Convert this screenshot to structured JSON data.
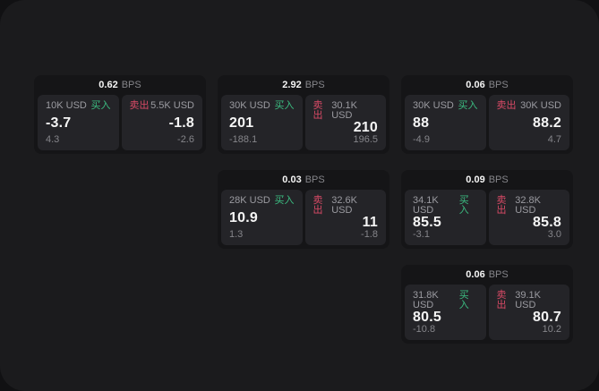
{
  "labels": {
    "buy": "买入",
    "sell": "卖出",
    "bps": "BPS"
  },
  "colors": {
    "buy_green": "#3bbd81",
    "sell_red": "#d94a66",
    "page_bg": "#1b1b1d",
    "card_bg": "#151517",
    "panel_bg": "#242428",
    "muted_text": "#9b9ba1",
    "faint_text": "#85858a",
    "bright_text": "#f5f5f5",
    "outer_bg": "#111113"
  },
  "cards": [
    {
      "row": 1,
      "col": 1,
      "bps": "0.62",
      "buy": {
        "amount": "10K USD",
        "price": "-3.7",
        "delta": "4.3"
      },
      "sell": {
        "amount": "5.5K USD",
        "price": "-1.8",
        "delta": "-2.6"
      }
    },
    {
      "row": 1,
      "col": 2,
      "bps": "2.92",
      "buy": {
        "amount": "30K USD",
        "price": "201",
        "delta": "-188.1"
      },
      "sell": {
        "amount": "30.1K USD",
        "price": "210",
        "delta": "196.5"
      }
    },
    {
      "row": 1,
      "col": 3,
      "bps": "0.06",
      "buy": {
        "amount": "30K USD",
        "price": "88",
        "delta": "-4.9"
      },
      "sell": {
        "amount": "30K USD",
        "price": "88.2",
        "delta": "4.7"
      }
    },
    {
      "row": 2,
      "col": 2,
      "bps": "0.03",
      "buy": {
        "amount": "28K USD",
        "price": "10.9",
        "delta": "1.3"
      },
      "sell": {
        "amount": "32.6K USD",
        "price": "11",
        "delta": "-1.8"
      }
    },
    {
      "row": 2,
      "col": 3,
      "bps": "0.09",
      "buy": {
        "amount": "34.1K USD",
        "price": "85.5",
        "delta": "-3.1"
      },
      "sell": {
        "amount": "32.8K USD",
        "price": "85.8",
        "delta": "3.0"
      }
    },
    {
      "row": 3,
      "col": 3,
      "bps": "0.06",
      "buy": {
        "amount": "31.8K USD",
        "price": "80.5",
        "delta": "-10.8"
      },
      "sell": {
        "amount": "39.1K USD",
        "price": "80.7",
        "delta": "10.2"
      }
    }
  ]
}
